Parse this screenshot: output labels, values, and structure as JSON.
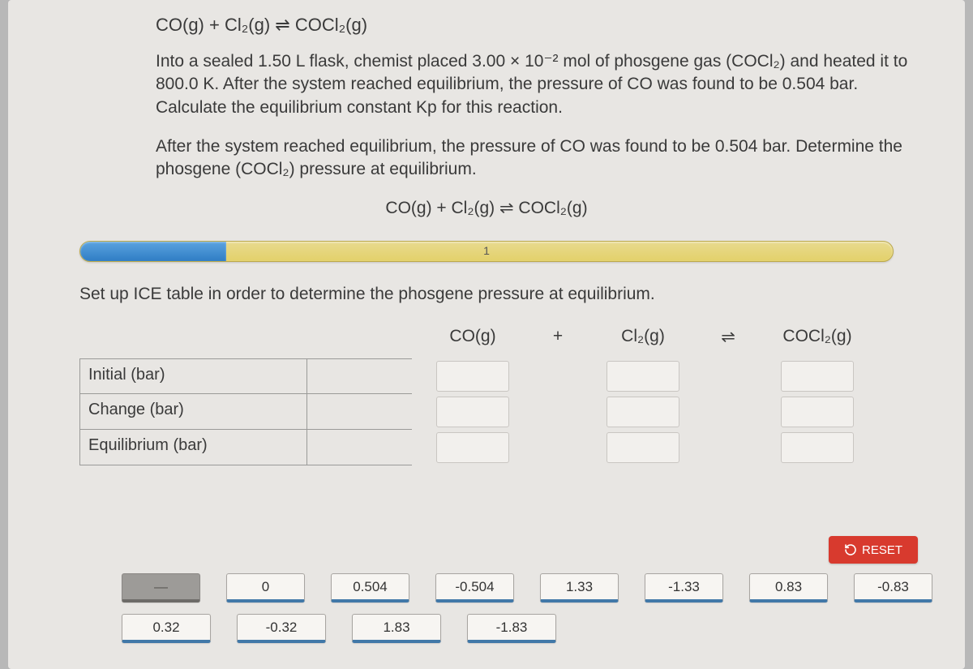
{
  "equation_top": "CO(g) + Cl₂(g) ⇌ COCl₂(g)",
  "paragraph1": "Into a sealed 1.50 L flask, chemist placed 3.00 × 10⁻² mol of phosgene gas (COCl₂) and heated it to 800.0 K. After the system reached equilibrium, the pressure of CO was found to be 0.504 bar. Calculate the equilibrium constant Kp for this reaction.",
  "paragraph2": "After the system reached equilibrium, the pressure of CO was found to be 0.504 bar. Determine the phosgene (COCl₂) pressure at equilibrium.",
  "center_equation": "CO(g) + Cl₂(g) ⇌ COCl₂(g)",
  "progress": {
    "step_label": "1",
    "fill_percent": 18
  },
  "instruction": "Set up ICE table in order to determine the phosgene pressure at equilibrium.",
  "ice": {
    "columns": {
      "blank": "",
      "c1": "CO(g)",
      "plus": "+",
      "c2": "Cl₂(g)",
      "eq": "⇌",
      "c3": "COCl₂(g)"
    },
    "rows": [
      "Initial (bar)",
      "Change (bar)",
      "Equilibrium (bar)"
    ]
  },
  "reset_label": "RESET",
  "tiles": {
    "row1": [
      "—",
      "0",
      "0.504",
      "-0.504",
      "1.33",
      "-1.33",
      "0.83",
      "-0.83"
    ],
    "row2": [
      "0.32",
      "-0.32",
      "1.83",
      "-1.83"
    ]
  },
  "colors": {
    "page_bg": "#e8e6e3",
    "text": "#3a3a3a",
    "progress_fill": "#2f7dc4",
    "progress_track": "#e3d16a",
    "reset_bg": "#d83a2e",
    "tile_accent": "#4178a8"
  }
}
